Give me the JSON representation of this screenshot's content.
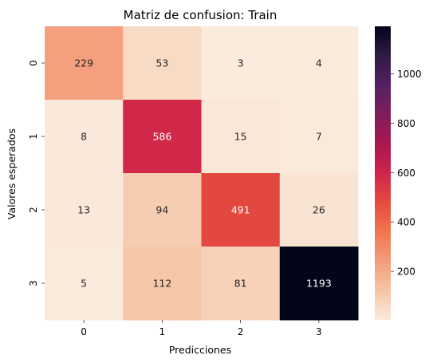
{
  "chart_data": {
    "type": "heatmap",
    "title": "Matriz de confusion: Train",
    "xlabel": "Predicciones",
    "ylabel": "Valores esperados",
    "x_categories": [
      "0",
      "1",
      "2",
      "3"
    ],
    "y_categories": [
      "0",
      "1",
      "2",
      "3"
    ],
    "values": [
      [
        229,
        53,
        3,
        4
      ],
      [
        8,
        586,
        15,
        7
      ],
      [
        13,
        94,
        491,
        26
      ],
      [
        5,
        112,
        81,
        1193
      ]
    ],
    "colormap": "rocket_r",
    "color_range": [
      3,
      1193
    ],
    "colorbar_ticks": [
      200,
      400,
      600,
      800,
      1000
    ],
    "grid": false
  }
}
